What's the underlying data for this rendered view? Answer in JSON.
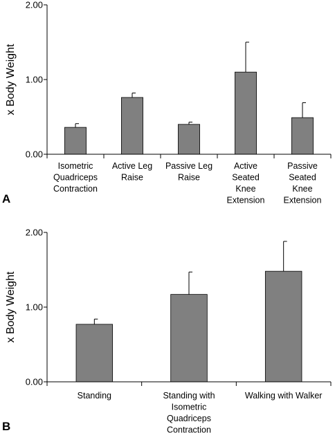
{
  "chart_data": [
    {
      "type": "bar",
      "panel_label": "A",
      "ylabel": "x Body Weight",
      "ylim": [
        0,
        2
      ],
      "yticks": [
        "0.00",
        "1.00",
        "2.00"
      ],
      "categories": [
        [
          "Isometric",
          "Quadriceps",
          "Contraction"
        ],
        [
          "Active Leg",
          "Raise"
        ],
        [
          "Passive Leg",
          "Raise"
        ],
        [
          "Active",
          "Seated",
          "Knee",
          "Extension"
        ],
        [
          "Passive",
          "Seated",
          "Knee",
          "Extension"
        ]
      ],
      "values": [
        0.36,
        0.76,
        0.4,
        1.1,
        0.49
      ],
      "error": [
        0.05,
        0.06,
        0.03,
        0.4,
        0.2
      ],
      "bar_color": "#808080"
    },
    {
      "type": "bar",
      "panel_label": "B",
      "ylabel": "x Body Weight",
      "ylim": [
        0,
        2
      ],
      "yticks": [
        "0.00",
        "1.00",
        "2.00"
      ],
      "categories": [
        [
          "Standing"
        ],
        [
          "Standing with",
          "Isometric",
          "Quadriceps",
          "Contraction"
        ],
        [
          "Walking with Walker"
        ]
      ],
      "values": [
        0.77,
        1.17,
        1.48
      ],
      "error": [
        0.07,
        0.3,
        0.4
      ],
      "bar_color": "#808080"
    }
  ]
}
